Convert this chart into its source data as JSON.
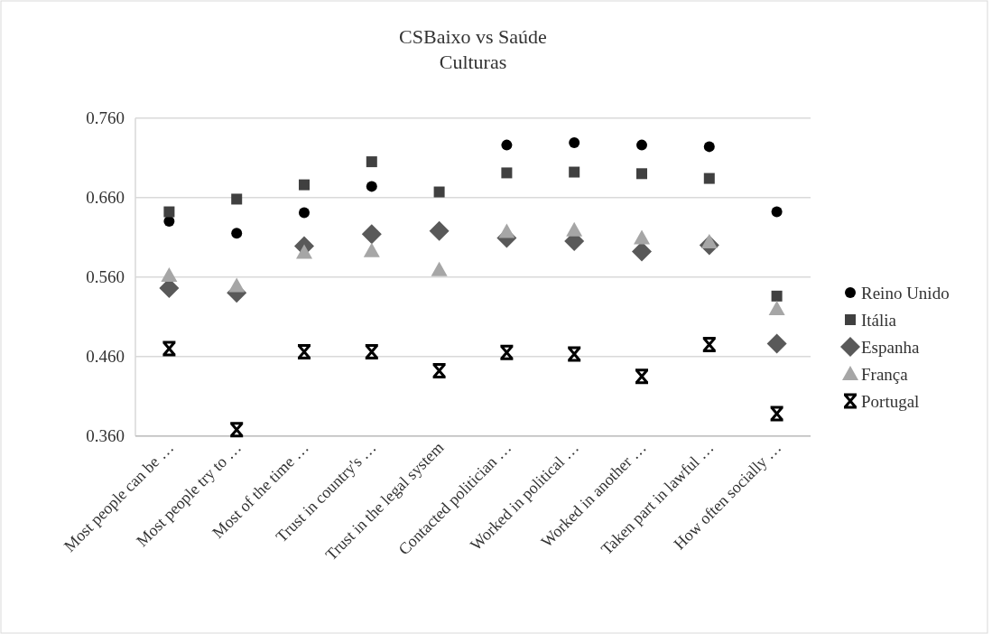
{
  "chart_data": {
    "type": "scatter",
    "title": "CSBaixo vs Saúde",
    "subtitle": "Culturas",
    "categories": [
      "Most people can be …",
      "Most people try to …",
      "Most of the time …",
      "Trust in country's …",
      "Trust in the legal system",
      "Contacted politician …",
      "Worked in political …",
      "Worked in another …",
      "Taken part in lawful …",
      "How often socially …"
    ],
    "series": [
      {
        "name": "Reino Unido",
        "color": "#000000",
        "marker": "circle",
        "values": [
          0.63,
          0.615,
          0.641,
          0.674,
          null,
          0.726,
          0.729,
          0.726,
          0.724,
          0.642
        ]
      },
      {
        "name": "Itália",
        "color": "#404040",
        "marker": "square",
        "values": [
          0.642,
          0.658,
          0.676,
          0.705,
          0.667,
          0.691,
          0.692,
          0.69,
          0.684,
          0.536
        ]
      },
      {
        "name": "Espanha",
        "color": "#595959",
        "marker": "diamond",
        "values": [
          0.546,
          0.54,
          0.599,
          0.614,
          0.618,
          0.609,
          0.605,
          0.592,
          0.6,
          0.476
        ]
      },
      {
        "name": "França",
        "color": "#a6a6a6",
        "marker": "triangle",
        "values": [
          0.562,
          0.549,
          0.591,
          0.593,
          0.569,
          0.617,
          0.619,
          0.609,
          0.604,
          0.52
        ]
      },
      {
        "name": "Portugal",
        "color": "#000000",
        "marker": "cross",
        "values": [
          0.47,
          0.368,
          0.466,
          0.466,
          0.442,
          0.465,
          0.463,
          0.435,
          0.475,
          0.388
        ]
      }
    ],
    "ylim": [
      0.36,
      0.76
    ],
    "yticks": [
      {
        "value": 0.36,
        "label": "0.360"
      },
      {
        "value": 0.46,
        "label": "0.460"
      },
      {
        "value": 0.56,
        "label": "0.560"
      },
      {
        "value": 0.66,
        "label": "0.660"
      },
      {
        "value": 0.76,
        "label": "0.760"
      }
    ],
    "grid": "y",
    "legend": "right"
  }
}
